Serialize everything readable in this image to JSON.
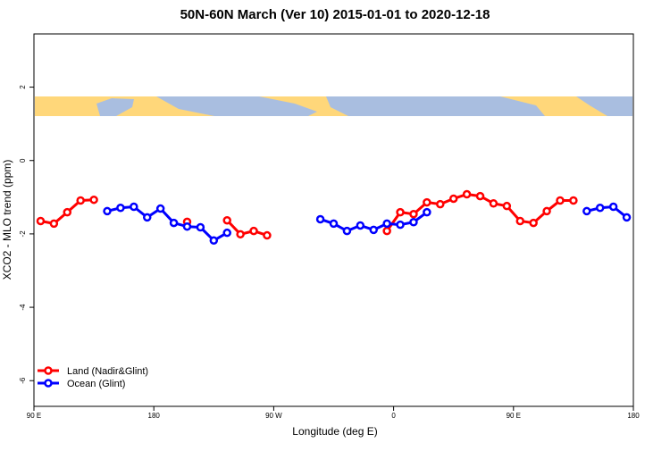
{
  "chart_data": {
    "type": "line",
    "title": "50N-60N March (Ver 10)   2015-01-01 to 2020-12-18",
    "x_label": "Longitude (deg E)",
    "y_label": "XCO2 - MLO trend (ppm)",
    "x": [
      95,
      105,
      115,
      125,
      135,
      145,
      155,
      165,
      175,
      185,
      195,
      205,
      215,
      225,
      235,
      245,
      255,
      265,
      275,
      285,
      295,
      305,
      315,
      325,
      335,
      345,
      355,
      365,
      375,
      385,
      395,
      405,
      415,
      425,
      435,
      445,
      455,
      465,
      475,
      485,
      495,
      505,
      515,
      525,
      535
    ],
    "series": [
      {
        "name": "Land (Nadir&Glint)",
        "color": "#ff0000",
        "values": [
          -1.65,
          -1.72,
          -1.41,
          -1.09,
          -1.07,
          null,
          null,
          null,
          null,
          null,
          null,
          -1.67,
          null,
          null,
          -1.63,
          -2.01,
          -1.92,
          -2.04,
          null,
          null,
          null,
          null,
          null,
          null,
          null,
          null,
          -1.92,
          -1.41,
          -1.46,
          -1.14,
          -1.19,
          -1.04,
          -0.92,
          -0.97,
          -1.17,
          -1.24,
          -1.65,
          -1.7,
          -1.38,
          -1.09,
          -1.09,
          null,
          null,
          null,
          null
        ]
      },
      {
        "name": "Ocean (Glint)",
        "color": "#0000ff",
        "values": [
          null,
          null,
          null,
          null,
          null,
          -1.38,
          -1.29,
          -1.26,
          -1.55,
          -1.31,
          -1.7,
          -1.8,
          -1.82,
          -2.18,
          -1.97,
          null,
          null,
          null,
          null,
          null,
          null,
          -1.6,
          -1.72,
          -1.92,
          -1.77,
          -1.89,
          -1.72,
          -1.75,
          -1.68,
          -1.41,
          null,
          null,
          null,
          null,
          null,
          null,
          null,
          null,
          null,
          null,
          null,
          -1.38,
          -1.29,
          -1.26,
          -1.55
        ]
      }
    ],
    "xlim": [
      90,
      540
    ],
    "xticks": [
      {
        "value": 90,
        "label": "90 E"
      },
      180,
      {
        "value": 270,
        "label": "90 W"
      },
      {
        "value": 360,
        "label": "0"
      },
      {
        "value": 450,
        "label": "90 E"
      },
      {
        "value": 540,
        "label": "180"
      }
    ],
    "ylim": [
      -6.7,
      3.45
    ],
    "yticks": [
      -6,
      -4,
      -2,
      0,
      2
    ],
    "legend": "bottomleft"
  }
}
